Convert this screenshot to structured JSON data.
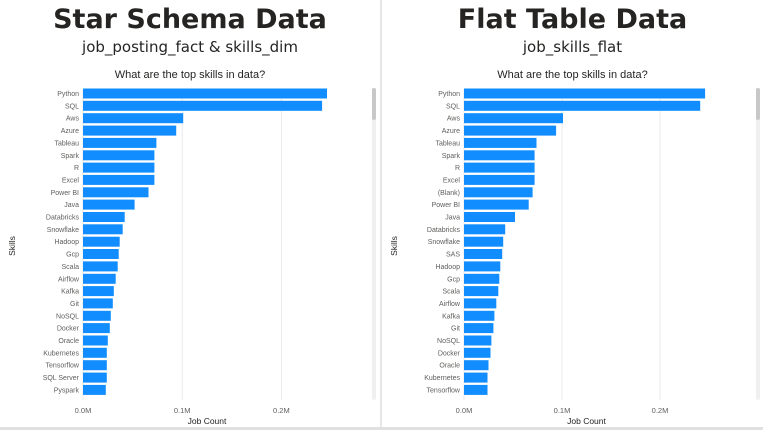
{
  "panels": [
    {
      "title": "Star Schema Data",
      "subtitle": "job_posting_fact & skills_dim"
    },
    {
      "title": "Flat Table Data",
      "subtitle": "job_skills_flat"
    }
  ],
  "chart_data": [
    {
      "type": "bar",
      "orientation": "horizontal",
      "title": "What are the top skills in data?",
      "xlabel": "Job Count",
      "ylabel": "Skills",
      "xlim": [
        0,
        250000
      ],
      "xticks": [
        "0.0M",
        "0.1M",
        "0.2M"
      ],
      "xtick_values": [
        0,
        100000,
        200000
      ],
      "bar_color": "#118DFF",
      "categories": [
        "Python",
        "SQL",
        "Aws",
        "Azure",
        "Tableau",
        "Spark",
        "R",
        "Excel",
        "Power BI",
        "Java",
        "Databricks",
        "Snowflake",
        "Hadoop",
        "Gcp",
        "Scala",
        "Airflow",
        "Kafka",
        "Git",
        "NoSQL",
        "Docker",
        "Oracle",
        "Kubernetes",
        "Tensorflow",
        "SQL Server",
        "Pyspark"
      ],
      "values": [
        246000,
        241000,
        101000,
        94000,
        74000,
        72000,
        72000,
        72000,
        66000,
        52000,
        42000,
        40000,
        37000,
        36000,
        35000,
        33000,
        31000,
        30000,
        28000,
        27000,
        25000,
        24000,
        24000,
        24000,
        23000
      ]
    },
    {
      "type": "bar",
      "orientation": "horizontal",
      "title": "What are the top skills in data?",
      "xlabel": "Job Count",
      "ylabel": "Skills",
      "xlim": [
        0,
        250000
      ],
      "xticks": [
        "0.0M",
        "0.1M",
        "0.2M"
      ],
      "xtick_values": [
        0,
        100000,
        200000
      ],
      "bar_color": "#118DFF",
      "categories": [
        "Python",
        "SQL",
        "Aws",
        "Azure",
        "Tableau",
        "Spark",
        "R",
        "Excel",
        "(Blank)",
        "Power BI",
        "Java",
        "Databricks",
        "Snowflake",
        "SAS",
        "Hadoop",
        "Gcp",
        "Scala",
        "Airflow",
        "Kafka",
        "Git",
        "NoSQL",
        "Docker",
        "Oracle",
        "Kubernetes",
        "Tensorflow"
      ],
      "values": [
        246000,
        241000,
        101000,
        94000,
        74000,
        72000,
        72000,
        72000,
        70000,
        66000,
        52000,
        42000,
        40000,
        39000,
        37000,
        36000,
        35000,
        33000,
        31000,
        30000,
        28000,
        27000,
        25000,
        24000,
        24000
      ]
    }
  ]
}
